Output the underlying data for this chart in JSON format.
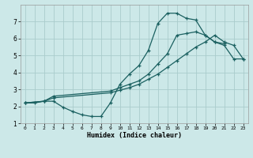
{
  "xlabel": "Humidex (Indice chaleur)",
  "bg_color": "#cce8e8",
  "grid_color": "#aacccc",
  "line_color": "#1a6060",
  "xlim": [
    -0.5,
    23.5
  ],
  "ylim": [
    1,
    8
  ],
  "xticks": [
    0,
    1,
    2,
    3,
    4,
    5,
    6,
    7,
    8,
    9,
    10,
    11,
    12,
    13,
    14,
    15,
    16,
    17,
    18,
    19,
    20,
    21,
    22,
    23
  ],
  "yticks": [
    1,
    2,
    3,
    4,
    5,
    6,
    7
  ],
  "c1x": [
    0,
    1,
    2,
    3,
    4,
    5,
    6,
    7,
    8,
    9,
    10,
    11,
    12,
    13,
    14,
    15,
    16,
    17,
    18,
    19,
    20,
    21
  ],
  "c1y": [
    2.2,
    2.2,
    2.3,
    2.3,
    1.95,
    1.7,
    1.5,
    1.4,
    1.4,
    2.2,
    3.3,
    3.9,
    4.4,
    5.3,
    6.9,
    7.5,
    7.5,
    7.2,
    7.1,
    6.2,
    5.8,
    5.7
  ],
  "c2x": [
    0,
    2,
    3,
    9,
    10,
    11,
    12,
    13,
    14,
    15,
    16,
    17,
    18,
    19,
    20,
    21,
    22,
    23
  ],
  "c2y": [
    2.2,
    2.3,
    2.6,
    2.9,
    3.1,
    3.3,
    3.5,
    3.9,
    4.5,
    5.1,
    6.2,
    6.3,
    6.4,
    6.2,
    5.8,
    5.6,
    4.8,
    4.8
  ],
  "c3x": [
    0,
    2,
    3,
    9,
    10,
    11,
    12,
    13,
    14,
    15,
    16,
    17,
    18,
    19,
    20,
    21,
    22,
    23
  ],
  "c3y": [
    2.2,
    2.3,
    2.5,
    2.8,
    2.95,
    3.1,
    3.3,
    3.6,
    3.9,
    4.3,
    4.7,
    5.1,
    5.5,
    5.8,
    6.2,
    5.8,
    5.6,
    4.8
  ]
}
